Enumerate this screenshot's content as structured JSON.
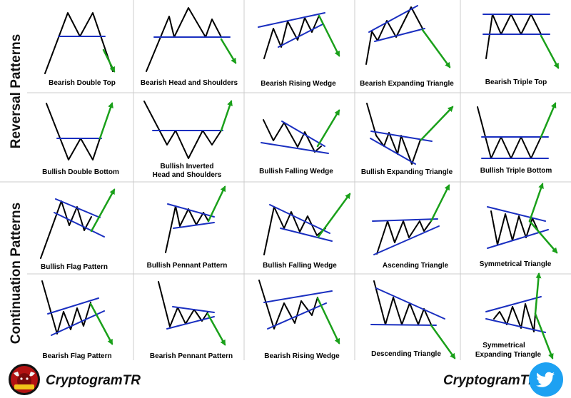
{
  "sections": {
    "reversal": "Reversal Patterns",
    "continuation": "Continuation Patterns"
  },
  "patterns": {
    "bearish_double_top": "Bearish Double Top",
    "bearish_head_shoulders": "Bearish Head and Shoulders",
    "bearish_rising_wedge_rev": "Bearish Rising Wedge",
    "bearish_expanding_triangle": "Bearish Expanding Triangle",
    "bearish_triple_top": "Bearish Triple Top",
    "bullish_double_bottom": "Bullish Double Bottom",
    "bullish_inverted_hs_1": "Bullish Inverted",
    "bullish_inverted_hs_2": "Head and Shoulders",
    "bullish_falling_wedge_rev": "Bullish Falling Wedge",
    "bullish_expanding_triangle": "Bullish Expanding Triangle",
    "bullish_triple_bottom": "Bullish Triple Bottom",
    "bullish_flag": "Bullish Flag Pattern",
    "bullish_pennant": "Bullish Pennant Pattern",
    "bullish_falling_wedge_cont": "Bullish Falling Wedge",
    "ascending_triangle": "Ascending Triangle",
    "symmetrical_triangle": "Symmetrical Triangle",
    "bearish_flag": "Bearish Flag Pattern",
    "bearish_pennant": "Bearish Pennant Pattern",
    "bearish_rising_wedge_cont": "Bearish Rising Wedge",
    "descending_triangle": "Descending Triangle",
    "symmetrical_expanding_1": "Symmetrical",
    "symmetrical_expanding_2": "Expanding Triangle"
  },
  "footer": {
    "brand_left": "CryptogramTR",
    "brand_right": "CryptogramTR",
    "logo_icon": "cryptogram-bull-logo-icon",
    "social_icon": "twitter-bird-icon"
  },
  "colors": {
    "price_line": "#000000",
    "trend_line": "#1a2fc0",
    "bullish_arrow": "#1aa01a",
    "bearish_arrow": "#1aa01a",
    "grid": "#cccccc",
    "twitter": "#1da1f2"
  }
}
